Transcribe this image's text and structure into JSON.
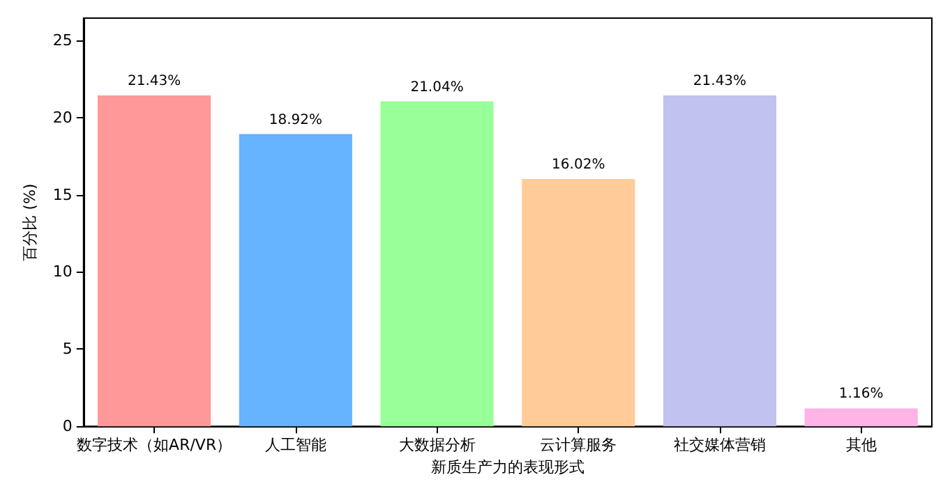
{
  "chart_data": {
    "type": "bar",
    "xlabel": "新质生产力的表现形式",
    "ylabel": "百分比 (%)",
    "categories": [
      "数字技术（如AR/VR）",
      "人工智能",
      "大数据分析",
      "云计算服务",
      "社交媒体营销",
      "其他"
    ],
    "values": [
      21.43,
      18.92,
      21.04,
      16.02,
      21.43,
      1.16
    ],
    "value_labels": [
      "21.43%",
      "18.92%",
      "21.04%",
      "16.02%",
      "21.43%",
      "1.16%"
    ],
    "colors": [
      "#ff9999",
      "#66b3ff",
      "#99ff99",
      "#ffcc99",
      "#c2c2f0",
      "#ffb3e6"
    ],
    "ylim": [
      0,
      26.43
    ],
    "yticks": [
      0,
      5,
      10,
      15,
      20,
      25
    ],
    "grid": false
  }
}
